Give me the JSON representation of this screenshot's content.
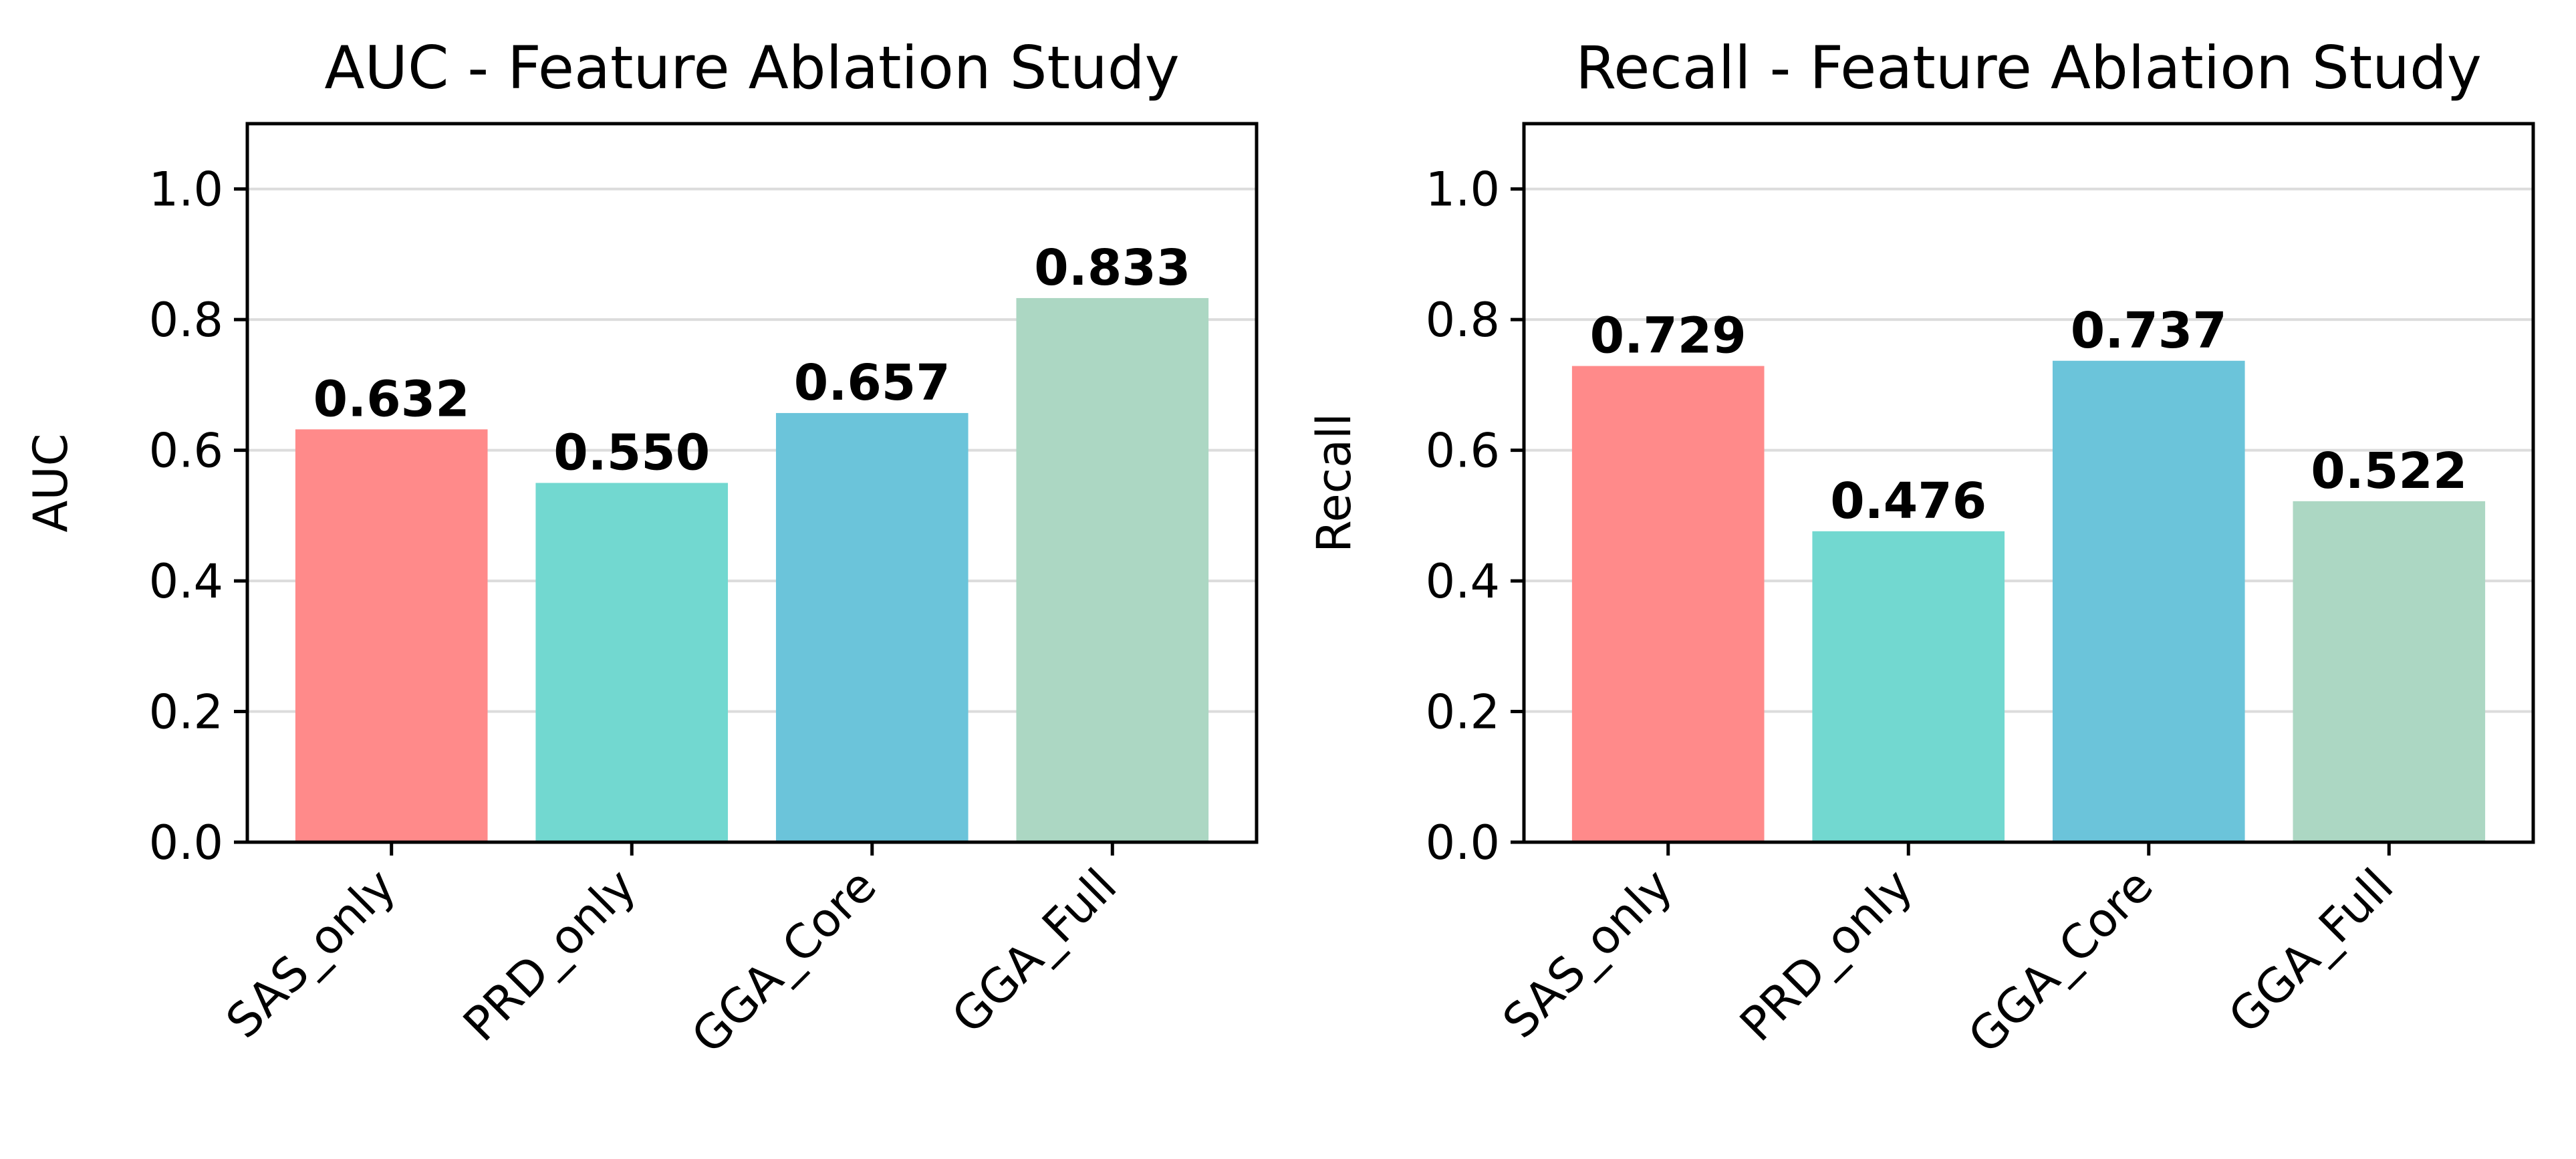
{
  "chart_data": [
    {
      "type": "bar",
      "title": "AUC - Feature Ablation Study",
      "xlabel": "",
      "ylabel": "AUC",
      "categories": [
        "SAS_only",
        "PRD_only",
        "GGA_Core",
        "GGA_Full"
      ],
      "values": [
        0.632,
        0.55,
        0.657,
        0.833
      ],
      "value_labels": [
        "0.632",
        "0.550",
        "0.657",
        "0.833"
      ],
      "colors": [
        "#ff8a8a",
        "#72d8d0",
        "#6bc4da",
        "#acd7c3"
      ],
      "ylim": [
        0,
        1.1
      ],
      "yticks": [
        0.0,
        0.2,
        0.4,
        0.6,
        0.8,
        1.0
      ],
      "ytick_labels": [
        "0.0",
        "0.2",
        "0.4",
        "0.6",
        "0.8",
        "1.0"
      ],
      "grid": "horizontal"
    },
    {
      "type": "bar",
      "title": "Recall - Feature Ablation Study",
      "xlabel": "",
      "ylabel": "Recall",
      "categories": [
        "SAS_only",
        "PRD_only",
        "GGA_Core",
        "GGA_Full"
      ],
      "values": [
        0.729,
        0.476,
        0.737,
        0.522
      ],
      "value_labels": [
        "0.729",
        "0.476",
        "0.737",
        "0.522"
      ],
      "colors": [
        "#ff8a8a",
        "#72d8d0",
        "#6bc4da",
        "#acd7c3"
      ],
      "ylim": [
        0,
        1.1
      ],
      "yticks": [
        0.0,
        0.2,
        0.4,
        0.6,
        0.8,
        1.0
      ],
      "ytick_labels": [
        "0.0",
        "0.2",
        "0.4",
        "0.6",
        "0.8",
        "1.0"
      ],
      "grid": "horizontal"
    }
  ]
}
